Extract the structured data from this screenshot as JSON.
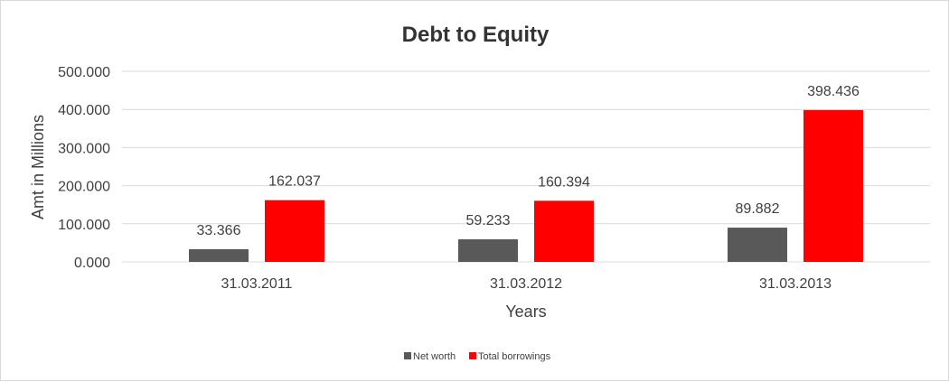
{
  "chart_data": {
    "type": "bar",
    "title": "Debt to Equity",
    "xlabel": "Years",
    "ylabel": "Amt in Millions",
    "categories": [
      "31.03.2011",
      "31.03.2012",
      "31.03.2013"
    ],
    "series": [
      {
        "name": "Net worth",
        "values": [
          33.366,
          59.233,
          89.882
        ],
        "color": "#595959"
      },
      {
        "name": "Total borrowings",
        "values": [
          162.037,
          160.394,
          398.436
        ],
        "color": "#ff0000"
      }
    ],
    "ylim": [
      0,
      500
    ],
    "yticks": [
      "0.000",
      "100.000",
      "200.000",
      "300.000",
      "400.000",
      "500.000"
    ],
    "data_labels": [
      [
        "33.366",
        "59.233",
        "89.882"
      ],
      [
        "162.037",
        "160.394",
        "398.436"
      ]
    ],
    "grid": true,
    "legend_position": "bottom"
  }
}
